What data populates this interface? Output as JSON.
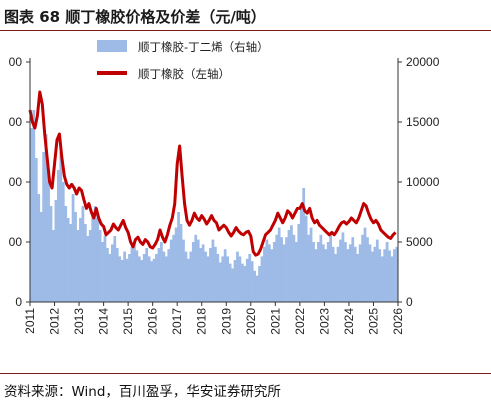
{
  "header": {
    "title": "图表 68 顺丁橡胶价格及价差（元/吨）"
  },
  "footer": {
    "source": "资料来源：Wind，百川盈孚，华安证券研究所"
  },
  "colors": {
    "bar_series": "#9dbbe6",
    "line_series": "#c00000",
    "frame_lines": "#7f1d1d"
  },
  "chart_data": {
    "type": "line",
    "title": "",
    "left_axis_ticks": [
      "00",
      "00",
      "00",
      "00",
      "0"
    ],
    "right_axis_ticks": [
      "20000",
      "15000",
      "10000",
      "5000",
      "0"
    ],
    "right_ylim": [
      0,
      20000
    ],
    "xlabel": "",
    "x_ticks": [
      "2011",
      "2012",
      "2013",
      "2014",
      "2015",
      "2016",
      "2017",
      "2018",
      "2019",
      "2020",
      "2021",
      "2022",
      "2023",
      "2024",
      "2025",
      "2026"
    ],
    "legend_position": "top",
    "grid": false,
    "series": [
      {
        "name": "顺丁橡胶-丁二烯（右轴）",
        "kind": "bar",
        "axis": "right",
        "points": [
          [
            2011.0,
            14500
          ],
          [
            2011.1,
            16000
          ],
          [
            2011.2,
            12000
          ],
          [
            2011.3,
            9000
          ],
          [
            2011.4,
            7500
          ],
          [
            2011.5,
            12500
          ],
          [
            2011.6,
            14000
          ],
          [
            2011.7,
            11000
          ],
          [
            2011.8,
            8000
          ],
          [
            2011.9,
            6000
          ],
          [
            2012.0,
            8500
          ],
          [
            2012.1,
            11000
          ],
          [
            2012.2,
            12500
          ],
          [
            2012.3,
            10000
          ],
          [
            2012.4,
            8000
          ],
          [
            2012.5,
            7000
          ],
          [
            2012.6,
            6500
          ],
          [
            2012.7,
            9000
          ],
          [
            2012.8,
            7500
          ],
          [
            2012.9,
            6000
          ],
          [
            2013.0,
            7000
          ],
          [
            2013.1,
            8000
          ],
          [
            2013.2,
            6500
          ],
          [
            2013.3,
            5500
          ],
          [
            2013.4,
            6000
          ],
          [
            2013.5,
            7500
          ],
          [
            2013.6,
            8000
          ],
          [
            2013.7,
            7000
          ],
          [
            2013.8,
            6000
          ],
          [
            2013.9,
            5000
          ],
          [
            2014.0,
            5500
          ],
          [
            2014.1,
            4500
          ],
          [
            2014.2,
            4000
          ],
          [
            2014.3,
            4800
          ],
          [
            2014.4,
            5500
          ],
          [
            2014.5,
            4500
          ],
          [
            2014.6,
            3800
          ],
          [
            2014.7,
            3500
          ],
          [
            2014.8,
            4200
          ],
          [
            2014.9,
            3600
          ],
          [
            2015.0,
            4000
          ],
          [
            2015.1,
            4600
          ],
          [
            2015.2,
            5000
          ],
          [
            2015.3,
            4300
          ],
          [
            2015.4,
            3800
          ],
          [
            2015.5,
            3500
          ],
          [
            2015.6,
            4000
          ],
          [
            2015.7,
            4500
          ],
          [
            2015.8,
            3800
          ],
          [
            2015.9,
            3400
          ],
          [
            2016.0,
            3600
          ],
          [
            2016.1,
            4000
          ],
          [
            2016.2,
            4500
          ],
          [
            2016.3,
            5000
          ],
          [
            2016.4,
            4200
          ],
          [
            2016.5,
            3800
          ],
          [
            2016.6,
            4400
          ],
          [
            2016.7,
            5200
          ],
          [
            2016.8,
            5600
          ],
          [
            2016.9,
            6200
          ],
          [
            2017.0,
            7500
          ],
          [
            2017.1,
            6500
          ],
          [
            2017.2,
            5200
          ],
          [
            2017.3,
            4200
          ],
          [
            2017.4,
            3600
          ],
          [
            2017.5,
            4200
          ],
          [
            2017.6,
            5000
          ],
          [
            2017.7,
            5600
          ],
          [
            2017.8,
            5200
          ],
          [
            2017.9,
            4500
          ],
          [
            2018.0,
            4800
          ],
          [
            2018.1,
            4200
          ],
          [
            2018.2,
            3800
          ],
          [
            2018.3,
            4500
          ],
          [
            2018.4,
            5200
          ],
          [
            2018.5,
            4600
          ],
          [
            2018.6,
            4000
          ],
          [
            2018.7,
            3300
          ],
          [
            2018.8,
            3800
          ],
          [
            2018.9,
            4400
          ],
          [
            2019.0,
            3800
          ],
          [
            2019.1,
            3200
          ],
          [
            2019.2,
            2800
          ],
          [
            2019.3,
            3500
          ],
          [
            2019.4,
            4200
          ],
          [
            2019.5,
            3800
          ],
          [
            2019.6,
            3200
          ],
          [
            2019.7,
            3000
          ],
          [
            2019.8,
            3600
          ],
          [
            2019.9,
            4000
          ],
          [
            2020.0,
            3400
          ],
          [
            2020.1,
            2600
          ],
          [
            2020.2,
            2200
          ],
          [
            2020.3,
            3000
          ],
          [
            2020.4,
            3800
          ],
          [
            2020.5,
            4600
          ],
          [
            2020.6,
            5200
          ],
          [
            2020.7,
            4800
          ],
          [
            2020.8,
            4400
          ],
          [
            2020.9,
            5000
          ],
          [
            2021.0,
            5600
          ],
          [
            2021.1,
            6200
          ],
          [
            2021.2,
            5400
          ],
          [
            2021.3,
            4800
          ],
          [
            2021.4,
            5400
          ],
          [
            2021.5,
            6000
          ],
          [
            2021.6,
            6400
          ],
          [
            2021.7,
            5600
          ],
          [
            2021.8,
            5000
          ],
          [
            2021.9,
            6500
          ],
          [
            2022.0,
            7800
          ],
          [
            2022.1,
            9500
          ],
          [
            2022.2,
            7200
          ],
          [
            2022.3,
            5600
          ],
          [
            2022.4,
            6200
          ],
          [
            2022.5,
            5000
          ],
          [
            2022.6,
            4400
          ],
          [
            2022.7,
            5000
          ],
          [
            2022.8,
            5600
          ],
          [
            2022.9,
            4800
          ],
          [
            2023.0,
            4400
          ],
          [
            2023.1,
            5000
          ],
          [
            2023.2,
            5600
          ],
          [
            2023.3,
            4600
          ],
          [
            2023.4,
            4000
          ],
          [
            2023.5,
            4600
          ],
          [
            2023.6,
            5200
          ],
          [
            2023.7,
            5800
          ],
          [
            2023.8,
            5000
          ],
          [
            2023.9,
            4400
          ],
          [
            2024.0,
            4800
          ],
          [
            2024.1,
            5400
          ],
          [
            2024.2,
            4600
          ],
          [
            2024.3,
            4000
          ],
          [
            2024.4,
            4800
          ],
          [
            2024.5,
            5600
          ],
          [
            2024.6,
            6200
          ],
          [
            2024.7,
            5400
          ],
          [
            2024.8,
            4800
          ],
          [
            2024.9,
            4200
          ],
          [
            2025.0,
            4600
          ],
          [
            2025.1,
            5200
          ],
          [
            2025.2,
            4400
          ],
          [
            2025.3,
            3800
          ],
          [
            2025.4,
            4400
          ],
          [
            2025.5,
            5000
          ],
          [
            2025.6,
            4300
          ],
          [
            2025.7,
            3800
          ],
          [
            2025.8,
            4400
          ],
          [
            2025.9,
            4600
          ]
        ]
      },
      {
        "name": "顺丁橡胶（左轴）",
        "kind": "line",
        "axis": "left",
        "scale_right_equiv": [
          0,
          20000
        ],
        "points": [
          [
            2011.0,
            16000
          ],
          [
            2011.1,
            15000
          ],
          [
            2011.2,
            14500
          ],
          [
            2011.3,
            15500
          ],
          [
            2011.4,
            17500
          ],
          [
            2011.5,
            16500
          ],
          [
            2011.6,
            14000
          ],
          [
            2011.7,
            12000
          ],
          [
            2011.8,
            10000
          ],
          [
            2011.9,
            9500
          ],
          [
            2012.0,
            11500
          ],
          [
            2012.1,
            13500
          ],
          [
            2012.2,
            14000
          ],
          [
            2012.3,
            12000
          ],
          [
            2012.4,
            10500
          ],
          [
            2012.5,
            9800
          ],
          [
            2012.6,
            9500
          ],
          [
            2012.7,
            9800
          ],
          [
            2012.8,
            9500
          ],
          [
            2012.9,
            9000
          ],
          [
            2013.0,
            9500
          ],
          [
            2013.1,
            9300
          ],
          [
            2013.2,
            8500
          ],
          [
            2013.3,
            7800
          ],
          [
            2013.4,
            8200
          ],
          [
            2013.5,
            7500
          ],
          [
            2013.6,
            7000
          ],
          [
            2013.7,
            7800
          ],
          [
            2013.8,
            7000
          ],
          [
            2013.9,
            6500
          ],
          [
            2014.0,
            6300
          ],
          [
            2014.1,
            5600
          ],
          [
            2014.2,
            5800
          ],
          [
            2014.3,
            6000
          ],
          [
            2014.4,
            6500
          ],
          [
            2014.5,
            6200
          ],
          [
            2014.6,
            6000
          ],
          [
            2014.7,
            6400
          ],
          [
            2014.8,
            6800
          ],
          [
            2014.9,
            6200
          ],
          [
            2015.0,
            5800
          ],
          [
            2015.1,
            5000
          ],
          [
            2015.2,
            4600
          ],
          [
            2015.3,
            5200
          ],
          [
            2015.4,
            5400
          ],
          [
            2015.5,
            5000
          ],
          [
            2015.6,
            4800
          ],
          [
            2015.7,
            5200
          ],
          [
            2015.8,
            5000
          ],
          [
            2015.9,
            4600
          ],
          [
            2016.0,
            4500
          ],
          [
            2016.1,
            4800
          ],
          [
            2016.2,
            5200
          ],
          [
            2016.3,
            6000
          ],
          [
            2016.4,
            5400
          ],
          [
            2016.5,
            5000
          ],
          [
            2016.6,
            5600
          ],
          [
            2016.7,
            6400
          ],
          [
            2016.8,
            7000
          ],
          [
            2016.9,
            8200
          ],
          [
            2017.0,
            11500
          ],
          [
            2017.1,
            13000
          ],
          [
            2017.2,
            10500
          ],
          [
            2017.3,
            8200
          ],
          [
            2017.4,
            6800
          ],
          [
            2017.5,
            6400
          ],
          [
            2017.6,
            6800
          ],
          [
            2017.7,
            7400
          ],
          [
            2017.8,
            7000
          ],
          [
            2017.9,
            6800
          ],
          [
            2018.0,
            7200
          ],
          [
            2018.1,
            6900
          ],
          [
            2018.2,
            6500
          ],
          [
            2018.3,
            6800
          ],
          [
            2018.4,
            7200
          ],
          [
            2018.5,
            6800
          ],
          [
            2018.6,
            6600
          ],
          [
            2018.7,
            6000
          ],
          [
            2018.8,
            6200
          ],
          [
            2018.9,
            6400
          ],
          [
            2019.0,
            6200
          ],
          [
            2019.1,
            5800
          ],
          [
            2019.2,
            5500
          ],
          [
            2019.3,
            5800
          ],
          [
            2019.4,
            6200
          ],
          [
            2019.5,
            5900
          ],
          [
            2019.6,
            5700
          ],
          [
            2019.7,
            5600
          ],
          [
            2019.8,
            5800
          ],
          [
            2019.9,
            5900
          ],
          [
            2020.0,
            5500
          ],
          [
            2020.1,
            4200
          ],
          [
            2020.2,
            3900
          ],
          [
            2020.3,
            4000
          ],
          [
            2020.4,
            4400
          ],
          [
            2020.5,
            5000
          ],
          [
            2020.6,
            5600
          ],
          [
            2020.7,
            5800
          ],
          [
            2020.8,
            6000
          ],
          [
            2020.9,
            6400
          ],
          [
            2021.0,
            6800
          ],
          [
            2021.1,
            7400
          ],
          [
            2021.2,
            7000
          ],
          [
            2021.3,
            6600
          ],
          [
            2021.4,
            7000
          ],
          [
            2021.5,
            7600
          ],
          [
            2021.6,
            7400
          ],
          [
            2021.7,
            7000
          ],
          [
            2021.8,
            7400
          ],
          [
            2021.9,
            7800
          ],
          [
            2022.0,
            7800
          ],
          [
            2022.1,
            8200
          ],
          [
            2022.2,
            7600
          ],
          [
            2022.3,
            7400
          ],
          [
            2022.4,
            7800
          ],
          [
            2022.5,
            7000
          ],
          [
            2022.6,
            6600
          ],
          [
            2022.7,
            6800
          ],
          [
            2022.8,
            6400
          ],
          [
            2022.9,
            6200
          ],
          [
            2023.0,
            6000
          ],
          [
            2023.1,
            5800
          ],
          [
            2023.2,
            5600
          ],
          [
            2023.3,
            5800
          ],
          [
            2023.4,
            5600
          ],
          [
            2023.5,
            5900
          ],
          [
            2023.6,
            6300
          ],
          [
            2023.7,
            6600
          ],
          [
            2023.8,
            6700
          ],
          [
            2023.9,
            6500
          ],
          [
            2024.0,
            6700
          ],
          [
            2024.1,
            7000
          ],
          [
            2024.2,
            6800
          ],
          [
            2024.3,
            6600
          ],
          [
            2024.4,
            7000
          ],
          [
            2024.5,
            7600
          ],
          [
            2024.6,
            8200
          ],
          [
            2024.7,
            8000
          ],
          [
            2024.8,
            7400
          ],
          [
            2024.9,
            6900
          ],
          [
            2025.0,
            6600
          ],
          [
            2025.1,
            6800
          ],
          [
            2025.2,
            6500
          ],
          [
            2025.3,
            6000
          ],
          [
            2025.4,
            5800
          ],
          [
            2025.5,
            5600
          ],
          [
            2025.6,
            5400
          ],
          [
            2025.7,
            5300
          ],
          [
            2025.8,
            5600
          ],
          [
            2025.9,
            5800
          ]
        ]
      }
    ]
  }
}
